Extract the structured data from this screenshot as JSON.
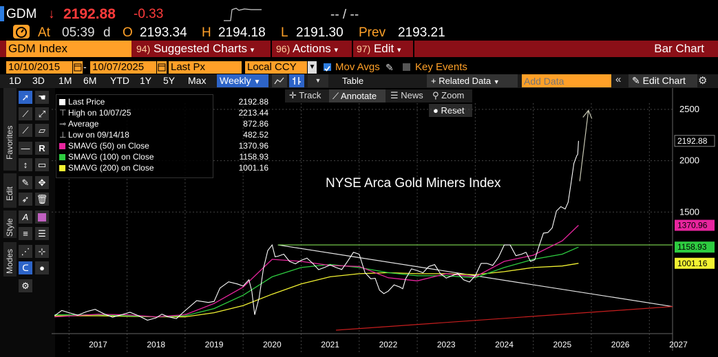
{
  "header": {
    "ticker": "GDM",
    "arrow": "↓",
    "last_price": "2192.88",
    "change": "-0.33",
    "bid_ask": "-- / --",
    "at_label": "At",
    "time": "05:39",
    "time_suffix": "d",
    "open_label": "O",
    "open": "2193.34",
    "high_label": "H",
    "high": "2194.18",
    "low_label": "L",
    "low": "2191.30",
    "prev_label": "Prev",
    "prev": "2193.21"
  },
  "menubar": {
    "security": "GDM Index",
    "suggested_num": "94)",
    "suggested": "Suggested Charts",
    "actions_num": "96)",
    "actions": "Actions",
    "edit_num": "97)",
    "edit": "Edit",
    "chart_type": "Bar Chart"
  },
  "controls": {
    "start_date": "10/10/2015",
    "end_date": "10/07/2025",
    "field": "Last Px",
    "currency": "Local CCY",
    "mov_avgs": "Mov Avgs",
    "key_events": "Key Events"
  },
  "toolbar": {
    "periods": [
      "1D",
      "3D",
      "1M",
      "6M",
      "YTD",
      "1Y",
      "5Y",
      "Max"
    ],
    "frequency": "Weekly",
    "table": "Table",
    "related_data": "Related Data",
    "add_data_placeholder": "Add Data",
    "edit_chart": "Edit Chart"
  },
  "chart_tools": {
    "track": "Track",
    "annotate": "Annotate",
    "news": "News",
    "zoom": "Zoom",
    "reset": "Reset"
  },
  "side_tabs": [
    "Favorites",
    "Edit",
    "Style",
    "Modes"
  ],
  "legend": [
    {
      "label": "Last Price",
      "value": "2192.88",
      "color": "#ffffff",
      "kind": "square"
    },
    {
      "label": "High on 10/07/25",
      "value": "2213.44",
      "color": "#ffffff",
      "kind": "high"
    },
    {
      "label": "Average",
      "value": "872.86",
      "color": "#ffffff",
      "kind": "avg"
    },
    {
      "label": "Low on 09/14/18",
      "value": "482.52",
      "color": "#ffffff",
      "kind": "low"
    },
    {
      "label": "SMAVG (50)  on Close",
      "value": "1370.96",
      "color": "#e8259e",
      "kind": "square"
    },
    {
      "label": "SMAVG (100)  on Close",
      "value": "1158.93",
      "color": "#2ecc40",
      "kind": "square"
    },
    {
      "label": "SMAVG (200)  on Close",
      "value": "1001.16",
      "color": "#f2f232",
      "kind": "square"
    }
  ],
  "annotation_text": "NYSE Arca Gold Miners Index",
  "chart_data": {
    "type": "line",
    "title": "NYSE Arca Gold Miners Index",
    "frequency": "Weekly",
    "x_ticks": [
      "2017",
      "2018",
      "2019",
      "2020",
      "2021",
      "2022",
      "2023",
      "2024",
      "2025",
      "2026",
      "2027"
    ],
    "xlim": [
      2016.7,
      2027.4
    ],
    "y_ticks": [
      1500,
      2000,
      2500
    ],
    "ylim": [
      350,
      2560
    ],
    "price_labels": [
      {
        "value": 2192.88,
        "text": "2192.88",
        "color": "#ffffff"
      },
      {
        "value": 1370.96,
        "text": "1370.96",
        "color": "#e8259e"
      },
      {
        "value": 1158.93,
        "text": "1158.93",
        "color": "#2ecc40"
      },
      {
        "value": 1001.16,
        "text": "1001.16",
        "color": "#f2f232"
      }
    ],
    "series": [
      {
        "name": "Last Price",
        "color": "#ffffff",
        "x": [
          2016.75,
          2017.0,
          2017.3,
          2017.6,
          2017.9,
          2018.2,
          2018.5,
          2018.7,
          2019.0,
          2019.4,
          2019.6,
          2019.9,
          2020.1,
          2020.2,
          2020.35,
          2020.5,
          2020.6,
          2020.8,
          2021.0,
          2021.2,
          2021.4,
          2021.6,
          2021.8,
          2022.0,
          2022.2,
          2022.35,
          2022.5,
          2022.7,
          2022.8,
          2023.0,
          2023.2,
          2023.4,
          2023.6,
          2023.8,
          2024.0,
          2024.2,
          2024.4,
          2024.6,
          2024.8,
          2024.95,
          2025.1,
          2025.25,
          2025.4,
          2025.55,
          2025.65,
          2025.75,
          2025.78
        ],
        "values": [
          490,
          520,
          530,
          510,
          500,
          490,
          470,
          482,
          540,
          620,
          760,
          800,
          840,
          500,
          950,
          1180,
          1070,
          1020,
          1030,
          1000,
          960,
          960,
          1020,
          1090,
          850,
          740,
          730,
          770,
          850,
          930,
          970,
          900,
          880,
          840,
          880,
          1000,
          1060,
          1180,
          1090,
          1020,
          1170,
          1300,
          1510,
          1530,
          1780,
          2050,
          2192.88
        ]
      },
      {
        "name": "SMAVG (50)",
        "color": "#e8259e",
        "x": [
          2016.75,
          2017.5,
          2018.0,
          2018.5,
          2019.0,
          2019.5,
          2020.0,
          2020.5,
          2021.0,
          2021.5,
          2022.0,
          2022.5,
          2023.0,
          2023.5,
          2024.0,
          2024.5,
          2025.0,
          2025.5,
          2025.78
        ],
        "values": [
          480,
          505,
          500,
          480,
          500,
          610,
          770,
          1040,
          1020,
          980,
          970,
          860,
          830,
          900,
          870,
          1020,
          1080,
          1220,
          1370.96
        ]
      },
      {
        "name": "SMAVG (100)",
        "color": "#2ecc40",
        "x": [
          2016.75,
          2017.5,
          2018.0,
          2018.5,
          2019.0,
          2019.5,
          2020.0,
          2020.5,
          2021.0,
          2021.5,
          2022.0,
          2022.5,
          2023.0,
          2023.5,
          2024.0,
          2024.5,
          2025.0,
          2025.5,
          2025.78
        ],
        "values": [
          500,
          500,
          490,
          480,
          490,
          560,
          690,
          870,
          960,
          990,
          960,
          910,
          880,
          880,
          860,
          960,
          1040,
          1090,
          1158.93
        ]
      },
      {
        "name": "SMAVG (200)",
        "color": "#f2f232",
        "x": [
          2016.75,
          2017.5,
          2018.0,
          2018.5,
          2019.0,
          2019.5,
          2020.0,
          2020.5,
          2021.0,
          2021.5,
          2022.0,
          2022.5,
          2023.0,
          2023.5,
          2024.0,
          2024.5,
          2025.0,
          2025.5,
          2025.78
        ],
        "values": [
          490,
          490,
          485,
          480,
          480,
          520,
          590,
          700,
          800,
          870,
          900,
          910,
          900,
          900,
          890,
          920,
          960,
          975,
          1001.16
        ]
      }
    ],
    "trendlines": [
      {
        "name": "resistance-diagonal",
        "color": "#e8e8e8",
        "x": [
          2020.6,
          2027.4
        ],
        "values": [
          1180,
          580
        ]
      },
      {
        "name": "horizontal",
        "color": "#7fdc52",
        "x": [
          2020.6,
          2027.4
        ],
        "values": [
          1180,
          1180
        ]
      },
      {
        "name": "support-rising",
        "color": "#c81e1e",
        "x": [
          2021.6,
          2027.4
        ],
        "values": [
          350,
          580
        ]
      },
      {
        "name": "up-arrow",
        "color": "#c8c8b4",
        "x": [
          2025.8,
          2025.95
        ],
        "values": [
          1800,
          2490
        ]
      }
    ]
  }
}
